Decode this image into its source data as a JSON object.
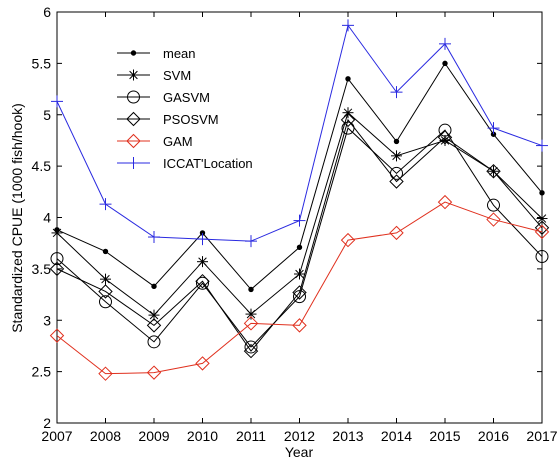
{
  "chart_data": {
    "type": "line",
    "xlabel": "Year",
    "ylabel": "Standardized CPUE (1000 fish/hook)",
    "x": [
      2007,
      2008,
      2009,
      2010,
      2011,
      2012,
      2013,
      2014,
      2015,
      2016,
      2017
    ],
    "xlim": [
      2007,
      2017
    ],
    "ylim": [
      2,
      6
    ],
    "y_ticks": [
      2,
      2.5,
      3,
      3.5,
      4,
      4.5,
      5,
      5.5,
      6
    ],
    "grid": false,
    "legend_position": "top-left",
    "series": [
      {
        "name": "mean",
        "marker": "dot",
        "color": "#000000",
        "values": [
          3.88,
          3.67,
          3.33,
          3.85,
          3.3,
          3.71,
          5.35,
          4.74,
          5.5,
          4.81,
          4.24
        ]
      },
      {
        "name": "SVM",
        "marker": "asterisk",
        "color": "#000000",
        "values": [
          3.85,
          3.4,
          3.05,
          3.57,
          3.06,
          3.45,
          5.02,
          4.6,
          4.75,
          4.45,
          3.99
        ]
      },
      {
        "name": "GASVM",
        "marker": "circle",
        "color": "#000000",
        "values": [
          3.6,
          3.18,
          2.79,
          3.36,
          2.74,
          3.23,
          4.87,
          4.43,
          4.85,
          4.12,
          3.62
        ]
      },
      {
        "name": "PSOSVM",
        "marker": "diamond",
        "color": "#000000",
        "values": [
          3.5,
          3.28,
          2.95,
          3.38,
          2.7,
          3.27,
          4.95,
          4.35,
          4.78,
          4.45,
          3.9
        ]
      },
      {
        "name": "GAM",
        "marker": "diamond",
        "color": "#e0301e",
        "values": [
          2.85,
          2.48,
          2.49,
          2.58,
          2.97,
          2.95,
          3.78,
          3.85,
          4.15,
          3.98,
          3.86
        ]
      },
      {
        "name": "ICCAT'Location",
        "marker": "plus",
        "color": "#2a2ae0",
        "values": [
          5.13,
          4.13,
          3.81,
          3.79,
          3.77,
          3.97,
          5.87,
          5.22,
          5.69,
          4.87,
          4.7
        ]
      }
    ]
  }
}
